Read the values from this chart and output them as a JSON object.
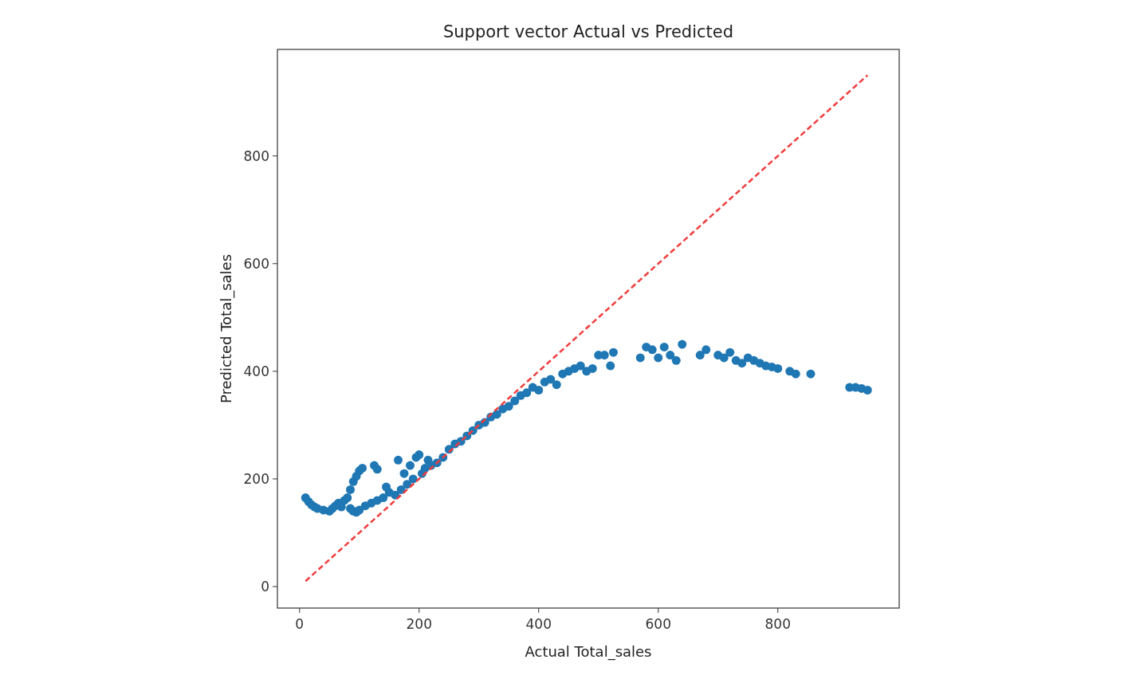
{
  "chart_data": {
    "type": "scatter",
    "title": "Support vector Actual vs Predicted",
    "xlabel": "Actual Total_sales",
    "ylabel": "Predicted Total_sales",
    "xlim": [
      -37,
      1003
    ],
    "ylim": [
      -40,
      998
    ],
    "xticks": [
      0,
      200,
      400,
      600,
      800
    ],
    "yticks": [
      0,
      200,
      400,
      600,
      800
    ],
    "marker": "circle",
    "series": [
      {
        "color": "#1f77b4",
        "x": [
          10,
          15,
          20,
          25,
          30,
          40,
          50,
          55,
          60,
          65,
          70,
          75,
          80,
          85,
          90,
          95,
          100,
          85,
          90,
          95,
          100,
          105,
          125,
          130,
          110,
          120,
          130,
          140,
          150,
          160,
          145,
          165,
          170,
          180,
          175,
          185,
          190,
          195,
          200,
          205,
          210,
          215,
          220,
          230,
          240,
          250,
          260,
          270,
          280,
          290,
          300,
          310,
          320,
          330,
          340,
          350,
          360,
          370,
          380,
          390,
          400,
          410,
          420,
          430,
          440,
          450,
          460,
          470,
          480,
          490,
          500,
          510,
          520,
          525,
          570,
          580,
          590,
          600,
          610,
          620,
          630,
          640,
          670,
          680,
          700,
          710,
          720,
          730,
          740,
          750,
          760,
          770,
          780,
          790,
          800,
          820,
          830,
          855,
          920,
          930,
          940,
          950
        ],
        "values": [
          165,
          158,
          152,
          148,
          145,
          142,
          140,
          145,
          150,
          155,
          148,
          160,
          165,
          145,
          140,
          138,
          142,
          180,
          195,
          205,
          215,
          220,
          225,
          218,
          150,
          155,
          160,
          165,
          175,
          170,
          185,
          235,
          180,
          190,
          210,
          225,
          200,
          240,
          245,
          210,
          220,
          235,
          225,
          230,
          240,
          255,
          265,
          270,
          280,
          290,
          300,
          305,
          315,
          320,
          330,
          335,
          345,
          355,
          360,
          370,
          365,
          380,
          385,
          375,
          395,
          400,
          405,
          410,
          400,
          405,
          430,
          430,
          410,
          435,
          425,
          445,
          440,
          425,
          445,
          430,
          420,
          450,
          430,
          440,
          430,
          425,
          435,
          420,
          415,
          425,
          420,
          415,
          410,
          408,
          405,
          400,
          395,
          395,
          370,
          370,
          368,
          365
        ]
      },
      {
        "type": "line",
        "color": "#f03c3c",
        "line_style": "dashed",
        "marker": "none",
        "x": [
          10,
          950
        ],
        "values": [
          10,
          950
        ]
      }
    ]
  }
}
